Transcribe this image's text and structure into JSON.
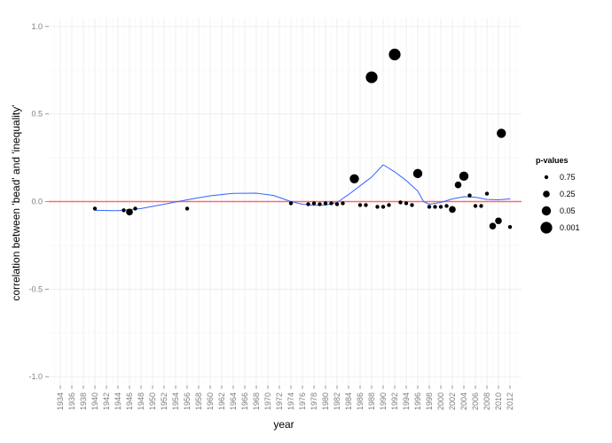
{
  "chart_data": {
    "type": "scatter",
    "title": "",
    "xlabel": "year",
    "ylabel": "correlation between 'bead' and 'inequality'",
    "xlim": [
      1932,
      2014
    ],
    "ylim": [
      -1.05,
      1.05
    ],
    "x_ticks": [
      1934,
      1936,
      1938,
      1940,
      1942,
      1944,
      1946,
      1948,
      1950,
      1952,
      1954,
      1956,
      1958,
      1960,
      1962,
      1964,
      1966,
      1968,
      1970,
      1972,
      1974,
      1976,
      1978,
      1980,
      1982,
      1984,
      1986,
      1988,
      1990,
      1992,
      1994,
      1996,
      1998,
      2000,
      2002,
      2004,
      2006,
      2008,
      2010,
      2012
    ],
    "y_ticks": [
      {
        "value": 1.0,
        "label": "1.0"
      },
      {
        "value": 0.5,
        "label": "0.5"
      },
      {
        "value": 0.0,
        "label": "0.0"
      },
      {
        "value": -0.5,
        "label": "-0.5"
      },
      {
        "value": -1.0,
        "label": "-1.0"
      }
    ],
    "grid": true,
    "reference_line": {
      "y": 0,
      "color": "#ff6b6b"
    },
    "smooth_line_color": "#3366ff",
    "point_color": "#000000",
    "legend": {
      "title": "p-values",
      "placement": "right",
      "entries": [
        {
          "label": "0.75",
          "size": 1
        },
        {
          "label": "0.25",
          "size": 2
        },
        {
          "label": "0.05",
          "size": 3
        },
        {
          "label": "0.001",
          "size": 4
        }
      ]
    },
    "points": [
      {
        "x": 1940,
        "y": -0.04,
        "size": 1
      },
      {
        "x": 1945,
        "y": -0.05,
        "size": 1
      },
      {
        "x": 1946,
        "y": -0.06,
        "size": 2
      },
      {
        "x": 1947,
        "y": -0.04,
        "size": 1
      },
      {
        "x": 1956,
        "y": -0.04,
        "size": 1
      },
      {
        "x": 1974,
        "y": -0.01,
        "size": 1
      },
      {
        "x": 1977,
        "y": -0.015,
        "size": 1
      },
      {
        "x": 1978,
        "y": -0.01,
        "size": 1
      },
      {
        "x": 1979,
        "y": -0.015,
        "size": 1
      },
      {
        "x": 1980,
        "y": -0.01,
        "size": 1
      },
      {
        "x": 1981,
        "y": -0.01,
        "size": 1
      },
      {
        "x": 1982,
        "y": -0.015,
        "size": 1
      },
      {
        "x": 1983,
        "y": -0.01,
        "size": 1
      },
      {
        "x": 1985,
        "y": 0.13,
        "size": 3
      },
      {
        "x": 1986,
        "y": -0.02,
        "size": 1
      },
      {
        "x": 1987,
        "y": -0.02,
        "size": 1
      },
      {
        "x": 1988,
        "y": 0.71,
        "size": 4
      },
      {
        "x": 1989,
        "y": -0.03,
        "size": 1
      },
      {
        "x": 1990,
        "y": -0.03,
        "size": 1
      },
      {
        "x": 1991,
        "y": -0.02,
        "size": 1
      },
      {
        "x": 1992,
        "y": 0.84,
        "size": 4
      },
      {
        "x": 1993,
        "y": -0.005,
        "size": 1
      },
      {
        "x": 1994,
        "y": -0.01,
        "size": 1
      },
      {
        "x": 1995,
        "y": -0.02,
        "size": 1
      },
      {
        "x": 1996,
        "y": 0.16,
        "size": 3
      },
      {
        "x": 1998,
        "y": -0.03,
        "size": 1
      },
      {
        "x": 1999,
        "y": -0.03,
        "size": 1
      },
      {
        "x": 2000,
        "y": -0.03,
        "size": 1
      },
      {
        "x": 2001,
        "y": -0.025,
        "size": 1
      },
      {
        "x": 2002,
        "y": -0.045,
        "size": 2
      },
      {
        "x": 2003,
        "y": 0.095,
        "size": 2
      },
      {
        "x": 2004,
        "y": 0.145,
        "size": 3
      },
      {
        "x": 2005,
        "y": 0.035,
        "size": 1
      },
      {
        "x": 2006,
        "y": -0.025,
        "size": 1
      },
      {
        "x": 2007,
        "y": -0.025,
        "size": 1
      },
      {
        "x": 2008,
        "y": 0.045,
        "size": 1
      },
      {
        "x": 2009,
        "y": -0.14,
        "size": 2
      },
      {
        "x": 2010,
        "y": -0.11,
        "size": 2
      },
      {
        "x": 2010.5,
        "y": 0.39,
        "size": 3
      },
      {
        "x": 2012,
        "y": -0.145,
        "size": 1
      }
    ],
    "smooth_line": [
      {
        "x": 1940,
        "y": -0.05
      },
      {
        "x": 1944,
        "y": -0.052
      },
      {
        "x": 1948,
        "y": -0.04
      },
      {
        "x": 1952,
        "y": -0.015
      },
      {
        "x": 1956,
        "y": 0.01
      },
      {
        "x": 1960,
        "y": 0.033
      },
      {
        "x": 1964,
        "y": 0.047
      },
      {
        "x": 1968,
        "y": 0.048
      },
      {
        "x": 1971,
        "y": 0.035
      },
      {
        "x": 1974,
        "y": 0.0
      },
      {
        "x": 1976,
        "y": -0.015
      },
      {
        "x": 1978,
        "y": -0.022
      },
      {
        "x": 1980,
        "y": -0.02
      },
      {
        "x": 1982,
        "y": -0.005
      },
      {
        "x": 1984,
        "y": 0.04
      },
      {
        "x": 1986,
        "y": 0.09
      },
      {
        "x": 1988,
        "y": 0.14
      },
      {
        "x": 1990,
        "y": 0.21
      },
      {
        "x": 1992,
        "y": 0.17
      },
      {
        "x": 1994,
        "y": 0.12
      },
      {
        "x": 1996,
        "y": 0.06
      },
      {
        "x": 1997,
        "y": 0.0
      },
      {
        "x": 1998,
        "y": -0.015
      },
      {
        "x": 2000,
        "y": -0.005
      },
      {
        "x": 2002,
        "y": 0.015
      },
      {
        "x": 2004,
        "y": 0.028
      },
      {
        "x": 2006,
        "y": 0.025
      },
      {
        "x": 2008,
        "y": 0.012
      },
      {
        "x": 2010,
        "y": 0.01
      },
      {
        "x": 2012,
        "y": 0.015
      }
    ]
  }
}
